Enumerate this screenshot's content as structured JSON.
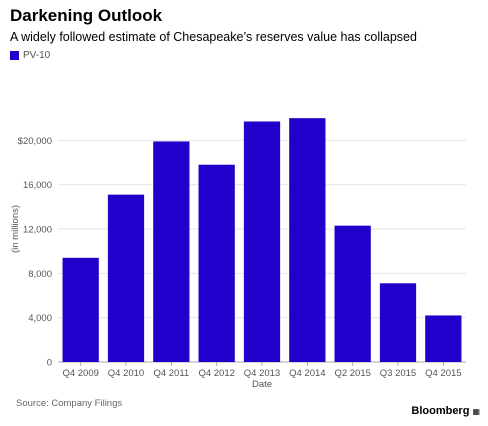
{
  "header": {
    "title": "Darkening Outlook",
    "subtitle": "A widely followed estimate of Chesapeake’s reserves value has collapsed"
  },
  "legend": {
    "label": "PV-10",
    "color": "#2200cc"
  },
  "footer": {
    "source": "Source: Company Filings",
    "brand": "Bloomberg",
    "brand_mark_icon": "bloomberg-terminal-icon"
  },
  "chart_data": {
    "type": "bar",
    "categories": [
      "Q4 2009",
      "Q4 2010",
      "Q4 2011",
      "Q4 2012",
      "Q4 2013",
      "Q4 2014",
      "Q2 2015",
      "Q3 2015",
      "Q4 2015"
    ],
    "series": [
      {
        "name": "PV-10",
        "values": [
          9400,
          15100,
          19900,
          17800,
          21700,
          22000,
          12300,
          7100,
          4200
        ]
      }
    ],
    "xlabel": "Date",
    "ylabel": "(in millions)",
    "ylim": [
      0,
      24000
    ],
    "yticks": [
      0,
      4000,
      8000,
      12000,
      16000,
      20000
    ],
    "ytick_labels": [
      "0",
      "4,000",
      "8,000",
      "12,000",
      "16,000",
      "$20,000"
    ],
    "grid": true,
    "legend_position": "top-left",
    "bar_color": "#2200cc",
    "grid_color": "#e6e6e6"
  }
}
